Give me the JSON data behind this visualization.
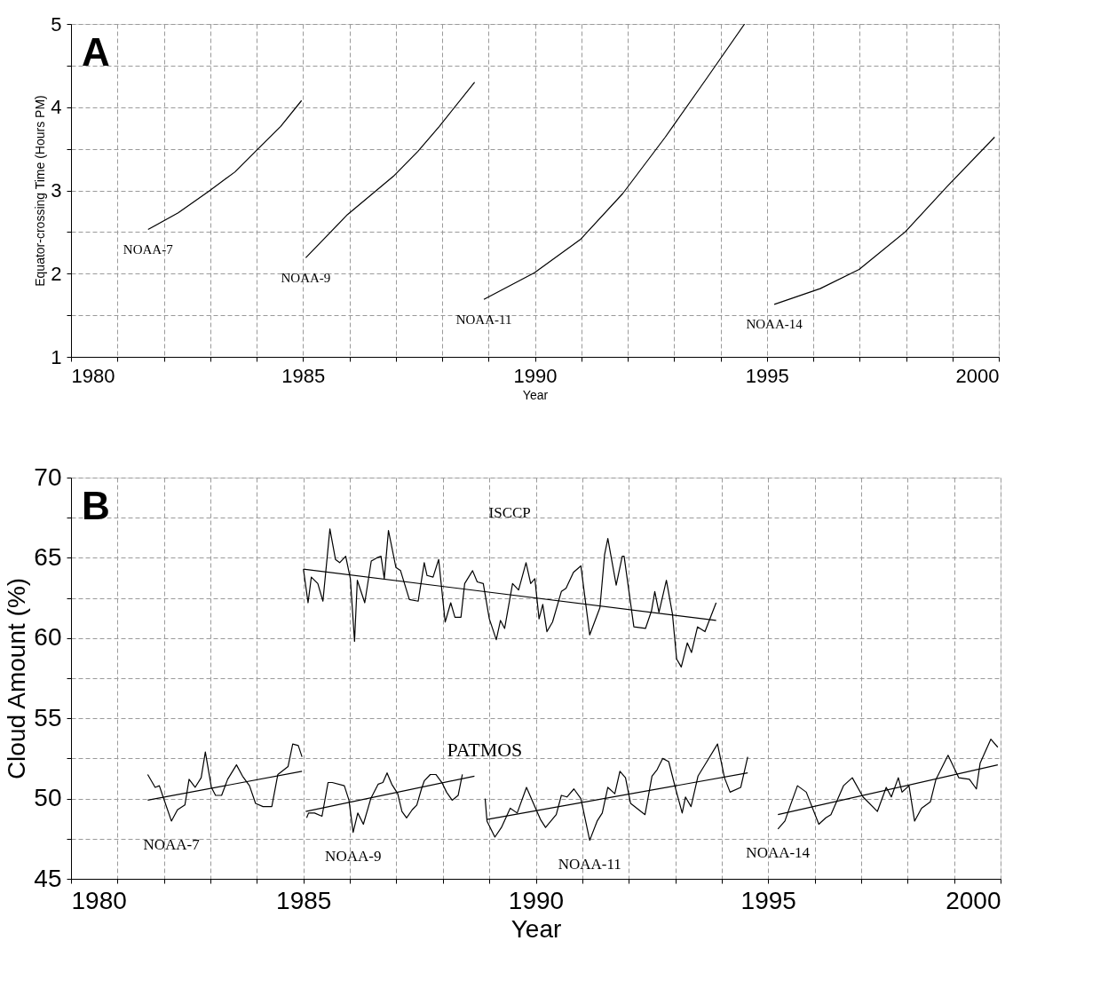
{
  "chart_data": [
    {
      "type": "line",
      "xlabel": "Year",
      "ylabel": "Equator-crossing Time (Hours PM)",
      "annotations": [
        "A"
      ],
      "grid": true,
      "xlim": [
        1980,
        2000
      ],
      "ylim": [
        1,
        5
      ],
      "xticks": [
        1980,
        {
          "value": 1981,
          "label": null
        },
        {
          "value": 1982,
          "label": null
        },
        {
          "value": 1983,
          "label": null
        },
        {
          "value": 1984,
          "label": null
        },
        1985,
        {
          "value": 1986,
          "label": null
        },
        {
          "value": 1987,
          "label": null
        },
        {
          "value": 1988,
          "label": null
        },
        {
          "value": 1989,
          "label": null
        },
        1990,
        {
          "value": 1991,
          "label": null
        },
        {
          "value": 1992,
          "label": null
        },
        {
          "value": 1993,
          "label": null
        },
        {
          "value": 1994,
          "label": null
        },
        1995,
        {
          "value": 1996,
          "label": null
        },
        {
          "value": 1997,
          "label": null
        },
        {
          "value": 1998,
          "label": null
        },
        {
          "value": 1999,
          "label": null
        },
        2000
      ],
      "yticks": [
        1,
        {
          "value": 1.5,
          "label": null
        },
        2,
        {
          "value": 2.5,
          "label": null
        },
        3,
        {
          "value": 3.5,
          "label": null
        },
        4,
        {
          "value": 4.5,
          "label": null
        },
        5
      ],
      "series": [
        {
          "name": "NOAA-7",
          "color": "#000000",
          "x": [
            1981.66,
            1982.31,
            1982.97,
            1983.53,
            1983.98,
            1984.52,
            1984.97
          ],
          "values": [
            2.53,
            2.73,
            2.99,
            3.22,
            3.47,
            3.77,
            4.08
          ]
        },
        {
          "name": "NOAA-9",
          "color": "#000000",
          "x": [
            1985.06,
            1985.96,
            1986.95,
            1987.48,
            1987.94,
            1988.7
          ],
          "values": [
            2.19,
            2.71,
            3.17,
            3.47,
            3.77,
            4.3
          ]
        },
        {
          "name": "NOAA-11",
          "color": "#000000",
          "x": [
            1988.9,
            1989.99,
            1990.98,
            1991.89,
            1992.81,
            1993.72,
            1994.52
          ],
          "values": [
            1.69,
            2.01,
            2.41,
            2.96,
            3.64,
            4.36,
            5.0
          ]
        },
        {
          "name": "NOAA-14",
          "color": "#000000",
          "x": [
            1995.16,
            1996.15,
            1996.99,
            1997.98,
            1998.89,
            1999.91
          ],
          "values": [
            1.63,
            1.82,
            2.05,
            2.5,
            3.05,
            3.64
          ]
        }
      ]
    },
    {
      "type": "line",
      "xlabel": "Year",
      "ylabel": "Cloud Amount (%)",
      "grid": true,
      "annotations": [
        "B",
        "PATMOS"
      ],
      "xlim": [
        1980,
        2000
      ],
      "ylim": [
        45,
        70
      ],
      "xticks": [
        1980,
        {
          "value": 1981,
          "label": null
        },
        {
          "value": 1982,
          "label": null
        },
        {
          "value": 1983,
          "label": null
        },
        {
          "value": 1984,
          "label": null
        },
        1985,
        {
          "value": 1986,
          "label": null
        },
        {
          "value": 1987,
          "label": null
        },
        {
          "value": 1988,
          "label": null
        },
        {
          "value": 1989,
          "label": null
        },
        1990,
        {
          "value": 1991,
          "label": null
        },
        {
          "value": 1992,
          "label": null
        },
        {
          "value": 1993,
          "label": null
        },
        {
          "value": 1994,
          "label": null
        },
        1995,
        {
          "value": 1996,
          "label": null
        },
        {
          "value": 1997,
          "label": null
        },
        {
          "value": 1998,
          "label": null
        },
        {
          "value": 1999,
          "label": null
        },
        2000
      ],
      "yticks": [
        45,
        {
          "value": 47.5,
          "label": null
        },
        50,
        {
          "value": 52.5,
          "label": null
        },
        55,
        {
          "value": 57.5,
          "label": null
        },
        60,
        {
          "value": 62.5,
          "label": null
        },
        65,
        {
          "value": 67.5,
          "label": null
        },
        70
      ],
      "series": [
        {
          "name": "ISCCP",
          "color": "#000000",
          "x": [
            1985.0,
            1985.1,
            1985.17,
            1985.31,
            1985.42,
            1985.57,
            1985.69,
            1985.78,
            1985.91,
            1986.01,
            1986.1,
            1986.16,
            1986.32,
            1986.46,
            1986.58,
            1986.67,
            1986.74,
            1986.83,
            1986.99,
            1987.09,
            1987.28,
            1987.47,
            1987.6,
            1987.66,
            1987.79,
            1987.91,
            1988.05,
            1988.17,
            1988.26,
            1988.39,
            1988.47,
            1988.64,
            1988.74,
            1988.87,
            1989.0,
            1989.15,
            1989.24,
            1989.33,
            1989.5,
            1989.63,
            1989.79,
            1989.89,
            1989.98,
            1990.07,
            1990.15,
            1990.24,
            1990.36,
            1990.55,
            1990.65,
            1990.81,
            1990.97,
            1991.16,
            1991.38,
            1991.48,
            1991.55,
            1991.73,
            1991.86,
            1991.9,
            1992.11,
            1992.36,
            1992.49,
            1992.56,
            1992.65,
            1992.81,
            1992.94,
            1993.03,
            1993.13,
            1993.26,
            1993.35,
            1993.48,
            1993.64,
            1993.88
          ],
          "values": [
            64.3,
            62.2,
            63.8,
            63.4,
            62.3,
            66.8,
            64.9,
            64.7,
            65.1,
            63.7,
            59.8,
            63.6,
            62.2,
            64.8,
            65.0,
            65.1,
            63.7,
            66.7,
            64.4,
            64.2,
            62.4,
            62.3,
            64.7,
            63.9,
            63.8,
            64.9,
            61.0,
            62.2,
            61.3,
            61.3,
            63.4,
            64.2,
            63.5,
            63.4,
            61.2,
            59.9,
            61.1,
            60.6,
            63.4,
            63.0,
            64.7,
            63.4,
            63.7,
            61.2,
            62.1,
            60.4,
            61.0,
            62.9,
            63.1,
            64.1,
            64.5,
            60.2,
            61.9,
            65.2,
            66.2,
            63.3,
            65.1,
            65.1,
            60.7,
            60.6,
            61.7,
            62.9,
            61.6,
            63.6,
            61.5,
            58.7,
            58.2,
            59.7,
            59.1,
            60.7,
            60.4,
            62.2
          ]
        },
        {
          "color": "#000000",
          "x": [
            1985.0,
            1993.88
          ],
          "values": [
            64.3,
            61.1
          ]
        },
        {
          "name": "NOAA-7",
          "color": "#000000",
          "x": [
            1981.65,
            1981.81,
            1981.9,
            1981.97,
            1982.16,
            1982.29,
            1982.45,
            1982.54,
            1982.67,
            1982.8,
            1982.89,
            1983.02,
            1983.11,
            1983.24,
            1983.37,
            1983.56,
            1983.69,
            1983.84,
            1983.97,
            1984.13,
            1984.32,
            1984.45,
            1984.67,
            1984.77,
            1984.89,
            1984.97
          ],
          "values": [
            51.5,
            50.7,
            50.8,
            50.2,
            48.6,
            49.3,
            49.6,
            51.2,
            50.7,
            51.3,
            52.9,
            50.7,
            50.2,
            50.2,
            51.2,
            52.1,
            51.4,
            50.8,
            49.7,
            49.5,
            49.5,
            51.5,
            52.0,
            53.4,
            53.3,
            52.6
          ]
        },
        {
          "color": "#000000",
          "x": [
            1981.65,
            1984.97
          ],
          "values": [
            49.9,
            51.7
          ]
        },
        {
          "name": "NOAA-9",
          "color": "#000000",
          "x": [
            1985.07,
            1985.11,
            1985.24,
            1985.4,
            1985.53,
            1985.62,
            1985.88,
            1985.98,
            1986.07,
            1986.17,
            1986.29,
            1986.45,
            1986.61,
            1986.71,
            1986.8,
            1986.9,
            1987.03,
            1987.12,
            1987.22,
            1987.34,
            1987.44,
            1987.54,
            1987.6,
            1987.73,
            1987.85,
            1987.98,
            1988.08,
            1988.2,
            1988.33,
            1988.42
          ],
          "values": [
            48.8,
            49.1,
            49.1,
            48.9,
            51.0,
            51.0,
            50.8,
            49.9,
            47.9,
            49.1,
            48.4,
            50.0,
            50.9,
            51.0,
            51.6,
            50.9,
            50.3,
            49.2,
            48.8,
            49.3,
            49.6,
            50.6,
            51.1,
            51.5,
            51.5,
            51.0,
            50.4,
            49.9,
            50.2,
            51.5
          ]
        },
        {
          "color": "#000000",
          "x": [
            1985.05,
            1988.68
          ],
          "values": [
            49.2,
            51.4
          ]
        },
        {
          "name": "NOAA-11",
          "color": "#000000",
          "x": [
            1988.91,
            1988.95,
            1989.12,
            1989.26,
            1989.45,
            1989.6,
            1989.8,
            1989.98,
            1990.1,
            1990.21,
            1990.44,
            1990.55,
            1990.67,
            1990.82,
            1990.97,
            1991.16,
            1991.32,
            1991.43,
            1991.55,
            1991.7,
            1991.81,
            1991.93,
            1992.04,
            1992.35,
            1992.5,
            1992.61,
            1992.73,
            1992.86,
            1993.0,
            1993.15,
            1993.22,
            1993.34,
            1993.49,
            1993.68,
            1993.91,
            1994.06,
            1994.18,
            1994.41,
            1994.56
          ],
          "values": [
            50.0,
            48.6,
            47.6,
            48.2,
            49.4,
            49.1,
            50.7,
            49.5,
            48.7,
            48.2,
            49.0,
            50.2,
            50.1,
            50.6,
            50.0,
            47.4,
            48.6,
            49.1,
            50.7,
            50.3,
            51.7,
            51.3,
            49.7,
            49.0,
            51.4,
            51.8,
            52.5,
            52.3,
            50.7,
            49.1,
            50.1,
            49.5,
            51.4,
            52.3,
            53.4,
            51.3,
            50.4,
            50.7,
            52.6
          ]
        },
        {
          "color": "#000000",
          "x": [
            1988.95,
            1994.56
          ],
          "values": [
            48.7,
            51.6
          ]
        },
        {
          "name": "NOAA-14",
          "color": "#000000",
          "x": [
            1995.21,
            1995.36,
            1995.48,
            1995.63,
            1995.82,
            1996.09,
            1996.24,
            1996.35,
            1996.62,
            1996.81,
            1997.04,
            1997.35,
            1997.54,
            1997.65,
            1997.8,
            1997.88,
            1998.03,
            1998.15,
            1998.3,
            1998.49,
            1998.61,
            1998.87,
            1999.1,
            1999.33,
            1999.48,
            1999.56,
            1999.79,
            1999.94
          ],
          "values": [
            48.1,
            48.6,
            49.6,
            50.8,
            50.4,
            48.4,
            48.8,
            49.0,
            50.8,
            51.3,
            50.1,
            49.2,
            50.7,
            50.1,
            51.3,
            50.4,
            50.8,
            48.6,
            49.4,
            49.8,
            51.2,
            52.7,
            51.3,
            51.2,
            50.6,
            52.2,
            53.7,
            53.2
          ]
        },
        {
          "color": "#000000",
          "x": [
            1995.21,
            1999.94
          ],
          "values": [
            49.0,
            52.1
          ]
        }
      ]
    }
  ]
}
